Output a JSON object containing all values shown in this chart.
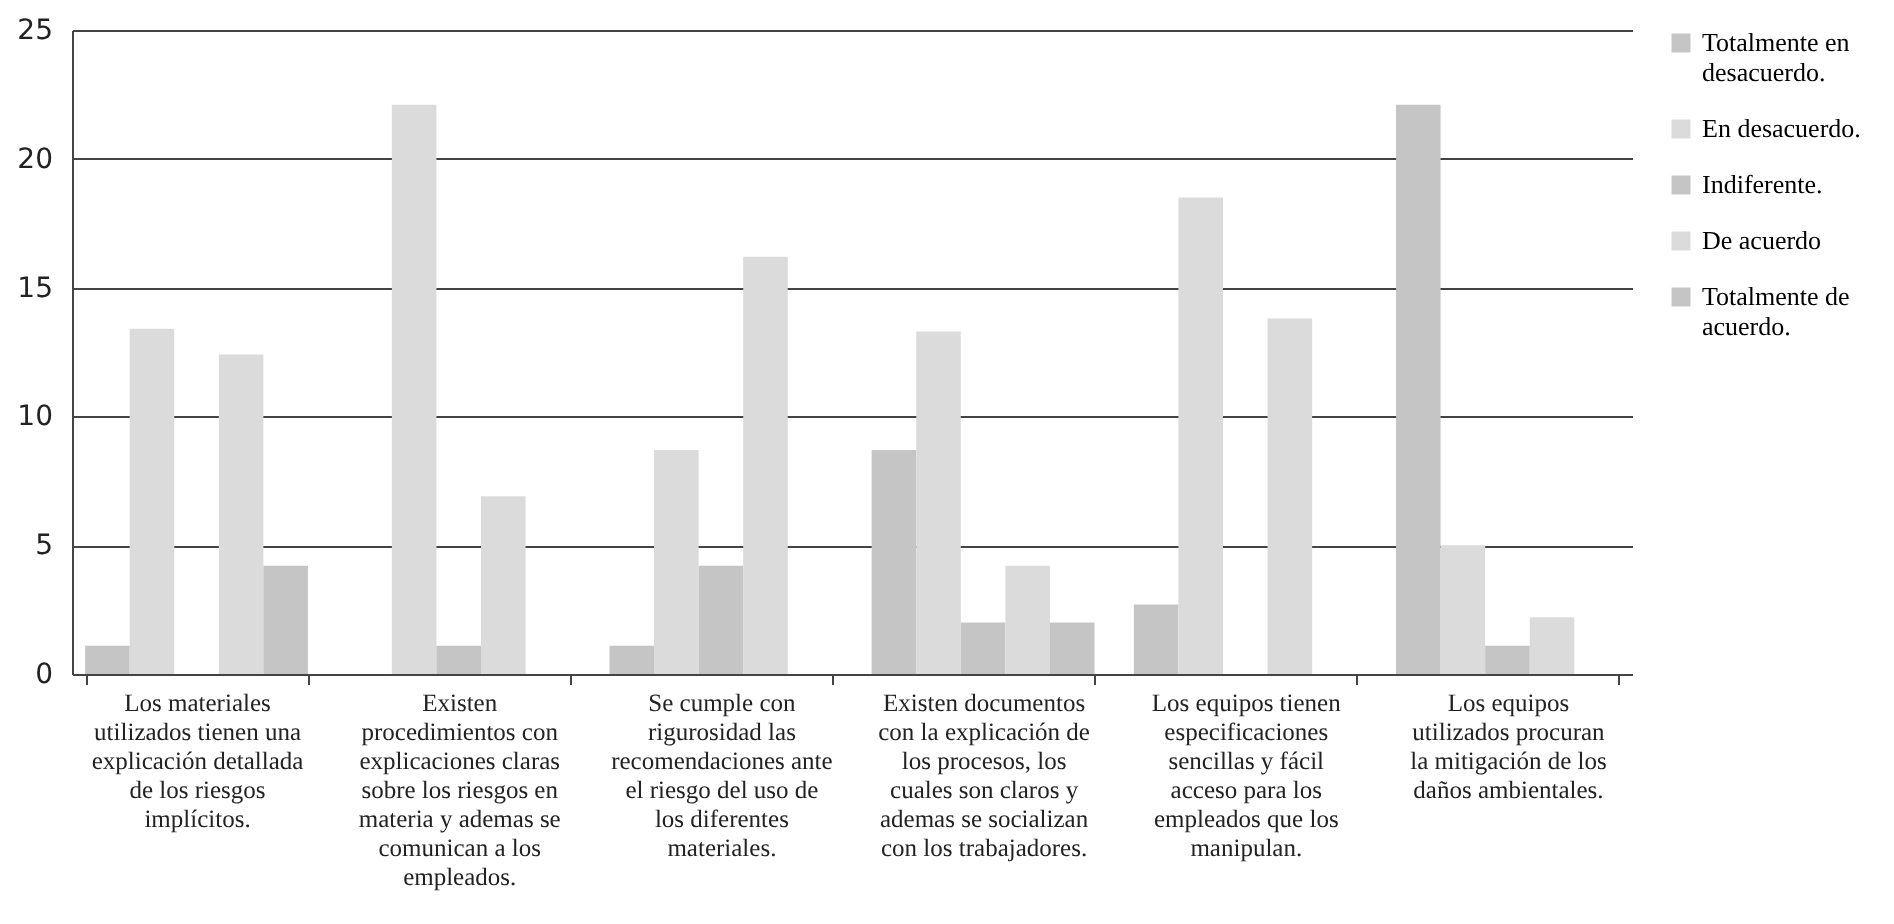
{
  "chart_data": {
    "type": "bar",
    "categories": [
      "Los materiales utilizados tienen una explicación detallada de los riesgos implícitos.",
      "Existen procedimientos con explicaciones claras sobre los riesgos en materia y ademas se comunican a los empleados.",
      "Se cumple con rigurosidad las recomendaciones ante el riesgo del uso de los diferentes materiales.",
      "Existen documentos con la explicación de los procesos, los cuales son claros y ademas se socializan con los trabajadores.",
      "Los equipos tienen especificaciones sencillas y fácil acceso para los empleados que los manipulan.",
      "Los equipos utilizados procuran la mitigación de los daños ambientales."
    ],
    "series": [
      {
        "name": "Totalmente en desacuerdo.",
        "color": "#c4c5c4",
        "values": [
          1.1,
          0,
          1.1,
          8.7,
          2.7,
          22.1
        ]
      },
      {
        "name": "En desacuerdo.",
        "color": "#dadbda",
        "values": [
          13.4,
          22.1,
          8.7,
          13.3,
          18.5,
          5
        ]
      },
      {
        "name": "Indiferente.",
        "color": "#c4c5c4",
        "values": [
          0,
          1.1,
          4.2,
          2,
          0,
          1.1
        ]
      },
      {
        "name": "De acuerdo",
        "color": "#dadbda",
        "values": [
          12.4,
          6.9,
          16.2,
          4.2,
          13.8,
          2.2
        ]
      },
      {
        "name": "Totalmente de acuerdo.",
        "color": "#c4c5c4",
        "values": [
          4.2,
          0,
          0,
          2,
          0,
          0
        ]
      }
    ],
    "ylim": [
      0,
      25
    ],
    "yticks": [
      0,
      5,
      10,
      15,
      20,
      25
    ],
    "grid": "y",
    "legend": "right"
  }
}
